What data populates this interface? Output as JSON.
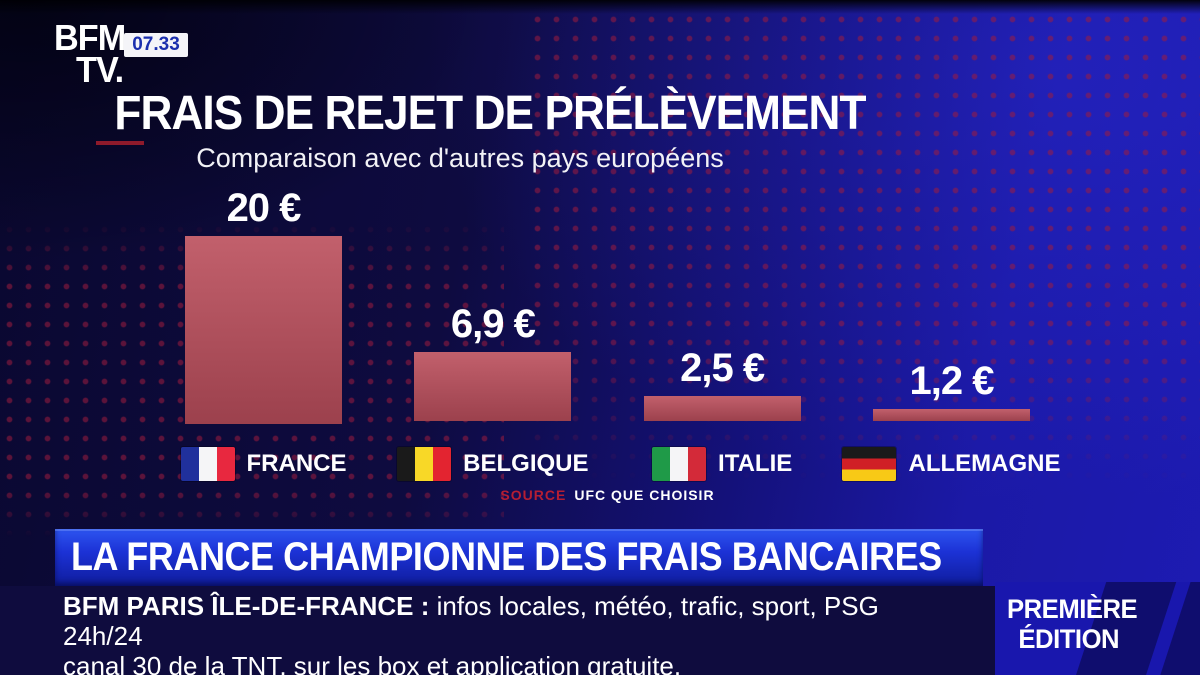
{
  "header": {
    "logo_line1": "BFM",
    "logo_line2": "TV.",
    "time": "07.33"
  },
  "chart_data": {
    "type": "bar",
    "title": "FRAIS DE REJET DE PRÉLÈVEMENT",
    "subtitle": "Comparaison avec d'autres pays européens",
    "categories": [
      "FRANCE",
      "BELGIQUE",
      "ITALIE",
      "ALLEMAGNE"
    ],
    "values": [
      20,
      6.9,
      2.5,
      1.2
    ],
    "value_labels": [
      "20 €",
      "6,9 €",
      "2,5 €",
      "1,2 €"
    ],
    "unit": "EUR",
    "ylim": [
      0,
      20
    ],
    "grid": false,
    "legend_position": "none",
    "source_label": "SOURCE",
    "source_value": "UFC QUE CHOISIR"
  },
  "flags": [
    {
      "name": "flag-france",
      "orientation": "vertical",
      "colors": [
        "#20309c",
        "#f5f5f7",
        "#e8283f"
      ]
    },
    {
      "name": "flag-belgique",
      "orientation": "vertical",
      "colors": [
        "#1a1a1a",
        "#f8d827",
        "#e32430"
      ]
    },
    {
      "name": "flag-italie",
      "orientation": "vertical",
      "colors": [
        "#1f9a48",
        "#f5f5f7",
        "#d32a39"
      ]
    },
    {
      "name": "flag-allemagne",
      "orientation": "horizontal",
      "colors": [
        "#1a1a1a",
        "#d01f26",
        "#f8c916"
      ]
    }
  ],
  "banner": {
    "headline": "LA FRANCE CHAMPIONNE DES FRAIS BANCAIRES"
  },
  "ticker": {
    "title_bold": "BFM PARIS ÎLE-DE-FRANCE :",
    "line1_rest": " infos locales, météo, trafic, sport, PSG 24h/24",
    "line2": "canal 30 de la TNT, sur les box et application gratuite."
  },
  "program": {
    "line1": "PREMIÈRE",
    "line2": "ÉDITION"
  },
  "colors": {
    "background_left": "#0e0b40",
    "background_right": "#1d1bb2",
    "dot_pattern": "#9e1c3e",
    "bar_top": "#c2606c",
    "bar_bottom": "#9c414d",
    "banner_blue": "#1c32d6",
    "program_box_blue": "#1917ad",
    "source_red": "#b51e33",
    "time_text_blue": "#1b2fae"
  }
}
